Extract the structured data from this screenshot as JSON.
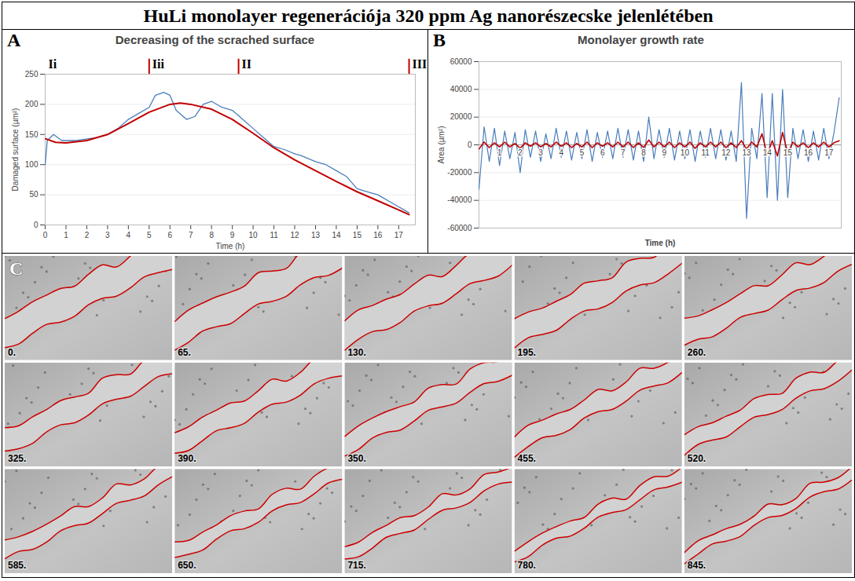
{
  "title": "HuLi monolayer regenerációja 320 ppm Ag nanorészecske jelenlétében",
  "chart_data": [
    {
      "panel": "A",
      "type": "line",
      "title": "Decreasing of the scrached surface",
      "x_label": "Time (h)",
      "y_label": "Damaged surface (µm²)",
      "xlim": [
        0,
        17.8
      ],
      "xticks": [
        0,
        1,
        2,
        3,
        4,
        5,
        6,
        7,
        8,
        9,
        10,
        11,
        12,
        13,
        14,
        15,
        16,
        17
      ],
      "ylim": [
        0,
        250
      ],
      "yticks": [
        0,
        50,
        100,
        150,
        200,
        250
      ],
      "grid": true,
      "phases": [
        {
          "label": "Ii",
          "start": 0
        },
        {
          "label": "Iii",
          "start": 5
        },
        {
          "label": "II",
          "start": 9.3
        },
        {
          "label": "III",
          "start": 17.5
        }
      ],
      "series": [
        {
          "color": "#4a7ebb",
          "x": [
            0,
            0.1,
            0.4,
            0.8,
            1.5,
            2.5,
            3,
            3.5,
            4,
            4.5,
            5,
            5.3,
            5.7,
            6,
            6.3,
            6.8,
            7.2,
            7.6,
            8,
            8.5,
            9,
            9.5,
            10,
            10.5,
            11,
            11.5,
            12,
            12.3,
            13,
            13.5,
            14,
            14.5,
            15,
            15.5,
            16,
            16.5,
            17,
            17.5
          ],
          "values": [
            100,
            140,
            150,
            140,
            140,
            145,
            150,
            160,
            175,
            185,
            195,
            215,
            220,
            215,
            190,
            175,
            180,
            200,
            205,
            195,
            190,
            175,
            160,
            145,
            130,
            125,
            118,
            115,
            105,
            100,
            90,
            80,
            60,
            55,
            50,
            40,
            30,
            20
          ]
        },
        {
          "color": "#c00000",
          "x": [
            0,
            0.5,
            1,
            2,
            3,
            4,
            5,
            6,
            6.5,
            7,
            8,
            9,
            10,
            11,
            12,
            13,
            14,
            15,
            16,
            17,
            17.5
          ],
          "values": [
            143,
            137,
            136,
            140,
            150,
            168,
            187,
            200,
            202,
            200,
            192,
            175,
            152,
            128,
            108,
            90,
            72,
            55,
            40,
            25,
            17
          ]
        }
      ]
    },
    {
      "panel": "B",
      "type": "line",
      "title": "Monolayer growth rate",
      "x_label": "Time (h)",
      "y_label": "Area (µm²)",
      "xlim": [
        0,
        17.6
      ],
      "xticks": [
        1,
        2,
        3,
        4,
        5,
        6,
        7,
        8,
        9,
        10,
        11,
        12,
        13,
        14,
        15,
        16,
        17
      ],
      "ylim": [
        -60000,
        60000
      ],
      "yticks": [
        -60000,
        -40000,
        -20000,
        0,
        20000,
        40000,
        60000
      ],
      "grid": true,
      "series": [
        {
          "color": "#4a7ebb",
          "x": [
            0,
            0.25,
            0.5,
            0.75,
            1,
            1.25,
            1.5,
            1.75,
            2,
            2.25,
            2.5,
            2.75,
            3,
            3.25,
            3.5,
            3.75,
            4,
            4.25,
            4.5,
            4.75,
            5,
            5.25,
            5.5,
            5.75,
            6,
            6.25,
            6.5,
            6.75,
            7,
            7.25,
            7.5,
            7.75,
            8,
            8.25,
            8.5,
            8.75,
            9,
            9.25,
            9.5,
            9.75,
            10,
            10.25,
            10.5,
            10.75,
            11,
            11.25,
            11.5,
            11.75,
            12,
            12.25,
            12.5,
            12.75,
            13,
            13.25,
            13.5,
            13.75,
            14,
            14.25,
            14.5,
            14.75,
            15,
            15.25,
            15.5,
            15.75,
            16,
            16.25,
            16.5,
            16.75,
            17,
            17.25,
            17.5
          ],
          "values": [
            -32000,
            13000,
            -12000,
            12000,
            -15000,
            10000,
            -10000,
            9000,
            -20000,
            11000,
            -9000,
            10000,
            -12000,
            8000,
            -10000,
            12000,
            -9000,
            10000,
            -11000,
            9000,
            -10000,
            11000,
            -12000,
            9000,
            -9000,
            10000,
            -10000,
            12000,
            -9000,
            11000,
            -11000,
            10000,
            -12000,
            20000,
            -10000,
            11000,
            -9000,
            12000,
            -11000,
            10000,
            -10000,
            11000,
            -12000,
            10000,
            -9000,
            12000,
            -10000,
            11000,
            -11000,
            10000,
            -12000,
            45000,
            -53000,
            12000,
            -10000,
            37000,
            -38000,
            37000,
            -40000,
            40000,
            -38000,
            12000,
            -10000,
            11000,
            -12000,
            10000,
            -11000,
            12000,
            -10000,
            9000,
            34000
          ]
        },
        {
          "color": "#c00000",
          "x": [
            0,
            0.25,
            0.5,
            0.75,
            1,
            1.25,
            1.5,
            1.75,
            2,
            2.25,
            2.5,
            2.75,
            3,
            3.25,
            3.5,
            3.75,
            4,
            4.25,
            4.5,
            4.75,
            5,
            5.25,
            5.5,
            5.75,
            6,
            6.25,
            6.5,
            6.75,
            7,
            7.25,
            7.5,
            7.75,
            8,
            8.25,
            8.5,
            8.75,
            9,
            9.25,
            9.5,
            9.75,
            10,
            10.25,
            10.5,
            10.75,
            11,
            11.25,
            11.5,
            11.75,
            12,
            12.25,
            12.5,
            12.75,
            13,
            13.25,
            13.5,
            13.75,
            14,
            14.25,
            14.5,
            14.75,
            15,
            15.25,
            15.5,
            15.75,
            16,
            16.25,
            16.5,
            16.75,
            17,
            17.25,
            17.5
          ],
          "values": [
            -3000,
            2000,
            -2000,
            1500,
            -1500,
            2000,
            -1500,
            1000,
            -2500,
            1500,
            -1000,
            1500,
            -1500,
            1000,
            -1500,
            2000,
            -1000,
            1500,
            -2000,
            1000,
            -1500,
            2000,
            -2000,
            1500,
            -1000,
            1500,
            -1500,
            2000,
            -1500,
            2000,
            -2000,
            1500,
            -2000,
            3500,
            -1500,
            2000,
            -1500,
            2000,
            -2000,
            1500,
            -1500,
            2000,
            -2500,
            1500,
            -1500,
            2000,
            -1500,
            2000,
            -2000,
            1500,
            -2000,
            3000,
            -3000,
            2000,
            -1500,
            8000,
            -7000,
            3000,
            -8000,
            9000,
            -6000,
            2000,
            -1500,
            1500,
            -2000,
            1500,
            -1500,
            2000,
            -1500,
            1500,
            3000
          ]
        }
      ]
    }
  ],
  "image_grid": {
    "panel": "C",
    "frames": [
      "0.",
      "65.",
      "130.",
      "195.",
      "260.",
      "325.",
      "390.",
      "350.",
      "455.",
      "520.",
      "585.",
      "650.",
      "715.",
      "780.",
      "845."
    ]
  }
}
